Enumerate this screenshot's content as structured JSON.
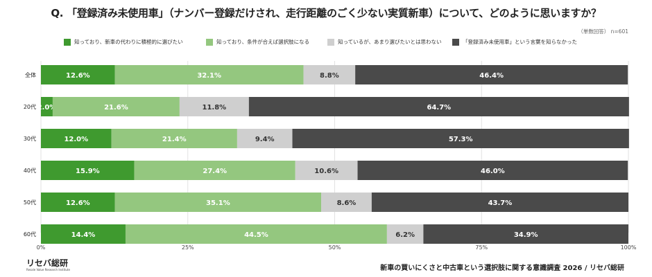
{
  "question": "Q. 「登録済み未使用車」（ナンバー登録だけされ、走行距離のごく少ない実質新車）について、どのように思いますか？",
  "note": "（単数回答） n=601",
  "footer": "新車の買いにくさと中古車という選択肢に関する意識調査 2026 / リセバ総研",
  "logo": {
    "text": "リセバ総研",
    "subtitle": "Resale Value Research Institute"
  },
  "chart_data": {
    "type": "bar",
    "orientation": "horizontal",
    "stacked": true,
    "percent_stacked": true,
    "categories": [
      "全体",
      "20代",
      "30代",
      "40代",
      "50代",
      "60代"
    ],
    "series": [
      {
        "name": "知っており、新車の代わりに積極的に選びたい",
        "color": "#3f9a2f",
        "values": [
          12.6,
          2.0,
          12.0,
          15.9,
          12.6,
          14.4
        ]
      },
      {
        "name": "知っており、条件が合えば選択肢になる",
        "color": "#94c77f",
        "values": [
          32.1,
          21.6,
          21.4,
          27.4,
          35.1,
          44.5
        ]
      },
      {
        "name": "知っているが、あまり選びたいとは思わない",
        "color": "#cfcfcf",
        "values": [
          8.8,
          11.8,
          9.4,
          10.6,
          8.6,
          6.2
        ]
      },
      {
        "name": "「登録済み未使用車」という言葉を知らなかった",
        "color": "#4a4a4a",
        "values": [
          46.4,
          64.7,
          57.3,
          46.0,
          43.7,
          34.9
        ]
      }
    ],
    "value_labels": [
      [
        "12.6%",
        "32.1%",
        "8.8%",
        "46.4%"
      ],
      [
        "2.0%",
        "21.6%",
        "11.8%",
        "64.7%"
      ],
      [
        "12.0%",
        "21.4%",
        "9.4%",
        "57.3%"
      ],
      [
        "15.9%",
        "27.4%",
        "10.6%",
        "46.0%"
      ],
      [
        "12.6%",
        "35.1%",
        "8.6%",
        "43.7%"
      ],
      [
        "14.4%",
        "44.5%",
        "6.2%",
        "34.9%"
      ]
    ],
    "xlim": [
      0,
      100
    ],
    "xticks": [
      "0%",
      "25%",
      "50%",
      "75%",
      "100%"
    ],
    "grid": true,
    "legend_position": "top"
  }
}
